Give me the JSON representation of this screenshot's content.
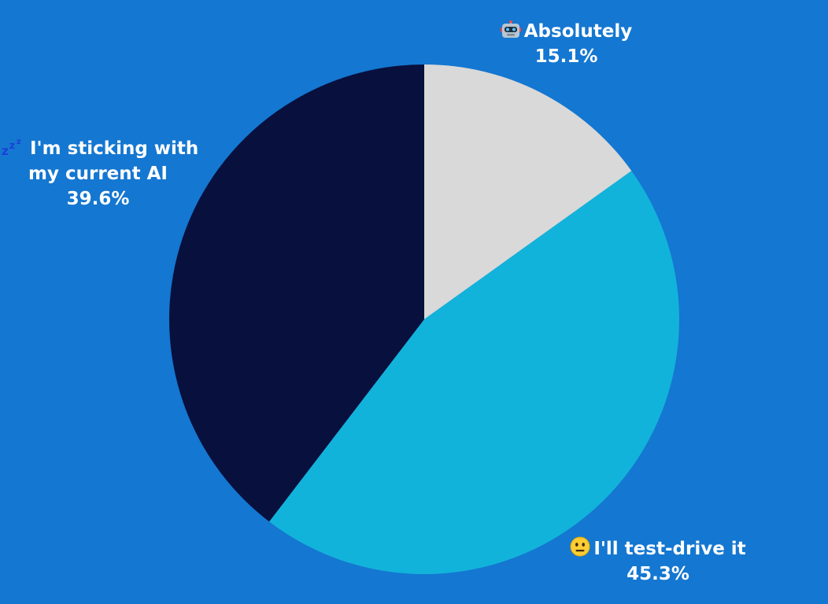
{
  "chart_data": {
    "type": "pie",
    "start_angle_deg": 0,
    "direction": "clockwise",
    "slices": [
      {
        "label": "Absolutely",
        "value": 15.1,
        "value_label": "15.1%",
        "color": "#d9d9d9",
        "icon": "robot-icon"
      },
      {
        "label": "I'll test-drive it",
        "value": 45.3,
        "value_label": "45.3%",
        "color": "#12b3db",
        "icon": "neutral-face-icon"
      },
      {
        "label": "I'm sticking with my current AI",
        "label_lines": [
          "I'm sticking with",
          "my current AI"
        ],
        "value": 39.6,
        "value_label": "39.6%",
        "color": "#08103d",
        "icon": "zzz-icon"
      }
    ]
  },
  "colors": {
    "background": "#1477d1",
    "label_text": "#ffffff"
  }
}
